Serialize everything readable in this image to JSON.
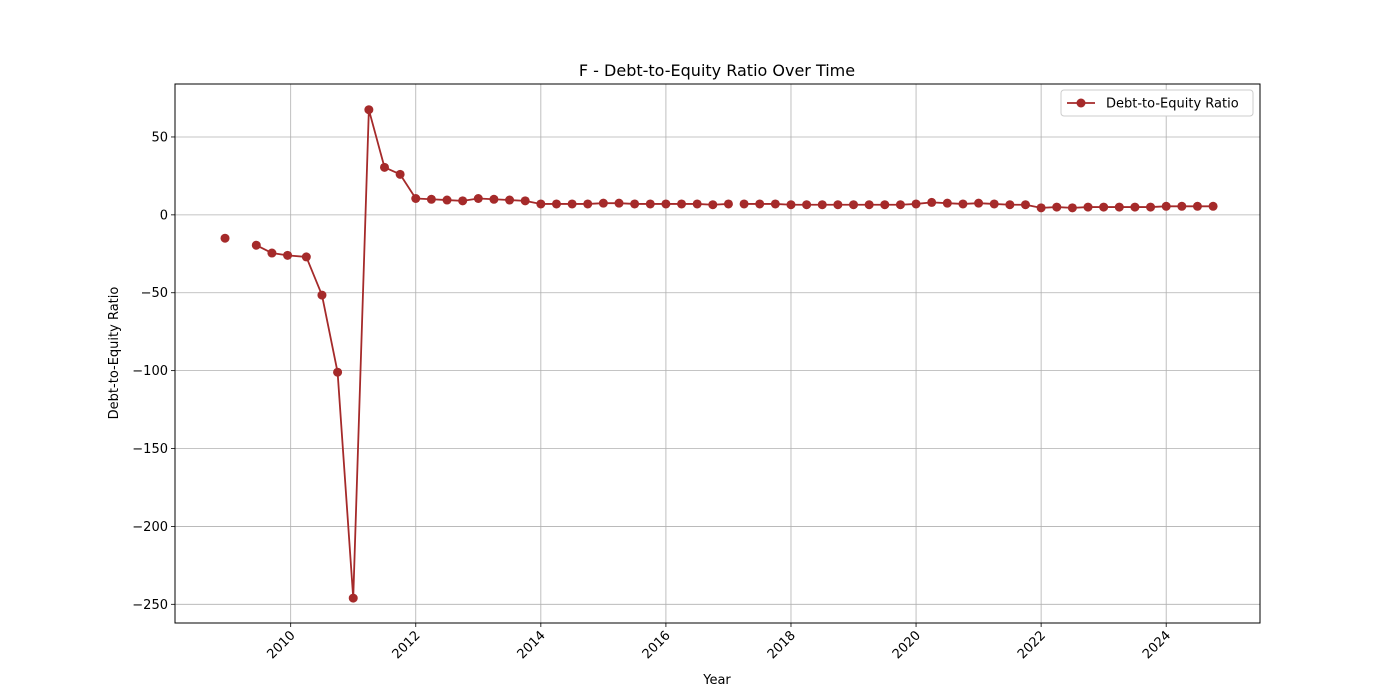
{
  "chart_data": {
    "type": "line",
    "title": "F - Debt-to-Equity Ratio Over Time",
    "xlabel": "Year",
    "ylabel": "Debt-to-Equity Ratio",
    "xlim": [
      2008.15,
      2025.5
    ],
    "ylim": [
      -262,
      84
    ],
    "x_ticks": [
      2010,
      2012,
      2014,
      2016,
      2018,
      2020,
      2022,
      2024
    ],
    "x_tick_labels": [
      "2010",
      "2012",
      "2014",
      "2016",
      "2018",
      "2020",
      "2022",
      "2024"
    ],
    "y_ticks": [
      50,
      0,
      -50,
      -100,
      -150,
      -200,
      -250
    ],
    "y_tick_labels": [
      "50",
      "0",
      "−50",
      "−100",
      "−150",
      "−200",
      "−250"
    ],
    "grid": true,
    "legend": "top-right",
    "marker": "circle",
    "color": "#a52a2a",
    "series": [
      {
        "name": "Debt-to-Equity Ratio",
        "x": [
          2008.95,
          2009.45,
          2009.7,
          2009.95,
          2010.25,
          2010.5,
          2010.75,
          2011.0,
          2011.25,
          2011.5,
          2011.75,
          2012.0,
          2012.25,
          2012.5,
          2012.75,
          2013.0,
          2013.25,
          2013.5,
          2013.75,
          2014.0,
          2014.25,
          2014.5,
          2014.75,
          2015.0,
          2015.25,
          2015.5,
          2015.75,
          2016.0,
          2016.25,
          2016.5,
          2016.75,
          2017.0,
          2017.25,
          2017.5,
          2017.75,
          2018.0,
          2018.25,
          2018.5,
          2018.75,
          2019.0,
          2019.25,
          2019.5,
          2019.75,
          2020.0,
          2020.25,
          2020.5,
          2020.75,
          2021.0,
          2021.25,
          2021.5,
          2021.75,
          2022.0,
          2022.25,
          2022.5,
          2022.75,
          2023.0,
          2023.25,
          2023.5,
          2023.75,
          2024.0,
          2024.25,
          2024.5,
          2024.75
        ],
        "y": [
          -15,
          -19.5,
          -24.5,
          -26,
          -27,
          -51.5,
          -101,
          -246,
          67.5,
          30.5,
          26,
          10.5,
          10,
          9.5,
          9,
          10.5,
          10,
          9.5,
          9,
          7,
          7,
          7,
          7,
          7.5,
          7.5,
          7,
          7,
          7,
          7,
          7,
          6.5,
          7,
          7,
          7,
          7,
          6.5,
          6.5,
          6.5,
          6.5,
          6.5,
          6.5,
          6.5,
          6.5,
          7,
          8,
          7.5,
          7,
          7.5,
          7,
          6.5,
          6.5,
          4.5,
          5,
          4.5,
          5,
          5,
          5,
          5,
          5,
          5.5,
          5.5,
          5.5,
          5.5
        ],
        "connected_segments": [
          [
            0,
            0
          ],
          [
            1,
            31
          ],
          [
            32,
            62
          ]
        ]
      }
    ]
  }
}
